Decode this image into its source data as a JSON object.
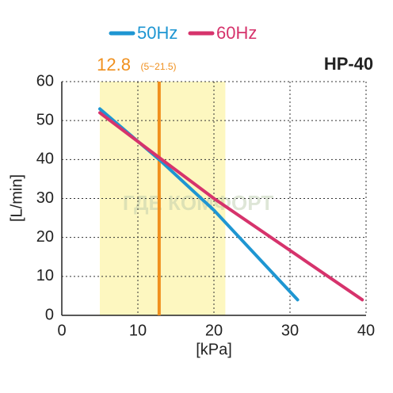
{
  "chart_data": {
    "type": "line",
    "title": "HP-40",
    "x_label": "[kPa]",
    "y_label": "[L/min]",
    "series": [
      {
        "name": "50Hz",
        "color": "#1e96d2",
        "x": [
          5,
          12.8,
          20,
          31
        ],
        "values": [
          53,
          40,
          27,
          4
        ]
      },
      {
        "name": "60Hz",
        "color": "#d6336c",
        "x": [
          5,
          12.8,
          20,
          39.5
        ],
        "values": [
          52,
          40.5,
          30,
          4
        ]
      }
    ],
    "highlight": {
      "value": 12.8,
      "range": [
        5,
        21.5
      ],
      "range_label": "(5~21.5)",
      "color": "#f0901e",
      "band_color": "#fdf7c0"
    },
    "watermark": "ГДЕ КОМФОРТ",
    "xlim": [
      0,
      40
    ],
    "xticks": [
      0,
      10,
      20,
      30,
      40
    ],
    "ylim": [
      0,
      60
    ],
    "yticks": [
      0,
      10,
      20,
      30,
      40,
      50,
      60
    ],
    "grid": true
  }
}
